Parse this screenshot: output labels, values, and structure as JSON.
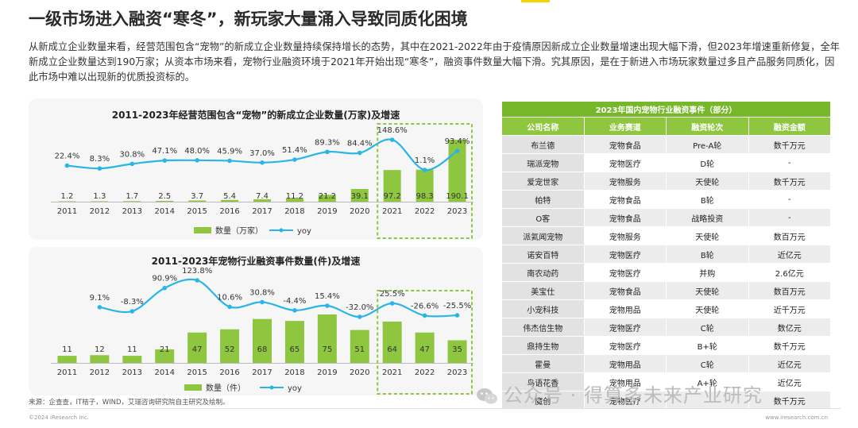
{
  "title": "一级市场进入融资“寒冬”，新玩家大量涌入导致同质化困境",
  "intro": "从新成立企业数量来看，经营范围包含“宠物”的新成立企业数量持续保持增长的态势，其中在2021-2022年由于疫情原因新成立企业数量增速出现大幅下滑，但2023年增速重新修复，全年新成立企业数量达到190万家；从资本市场来看，宠物行业融资环境于2021年开始出现“寒冬”，融资事件数量大幅下滑。究其原因，是在于新进入市场玩家数量过多且产品服务同质化，因此市场中难以出现新的优质投资标的。",
  "colors": {
    "bar": "#8ec640",
    "line": "#29b6e6",
    "highlight": "#8ec640",
    "table_header": "#76b82a"
  },
  "chart_data": [
    {
      "type": "bar",
      "title": "2011-2023年经营范围包含“宠物”的新成立企业数量(万家)及增速",
      "categories": [
        "2011",
        "2012",
        "2013",
        "2014",
        "2015",
        "2016",
        "2017",
        "2018",
        "2019",
        "2020",
        "2021",
        "2022",
        "2023"
      ],
      "series": [
        {
          "name": "数量（万家）",
          "kind": "bar",
          "values": [
            1.2,
            1.3,
            1.7,
            2.5,
            3.7,
            5.4,
            7.4,
            11.2,
            21.2,
            39.1,
            97.2,
            98.3,
            190.1
          ]
        },
        {
          "name": "yoy",
          "kind": "line",
          "values": [
            22.4,
            8.3,
            30.8,
            47.1,
            48.0,
            45.9,
            37.0,
            51.4,
            89.3,
            84.4,
            148.6,
            1.1,
            93.4
          ]
        }
      ],
      "value_labels": [
        "1.2",
        "1.3",
        "1.7",
        "2.5",
        "3.7",
        "5.4",
        "7.4",
        "11.2",
        "21.2",
        "39.1",
        "97.2",
        "98.3",
        "190.1"
      ],
      "yoy_labels": [
        "22.4%",
        "8.3%",
        "30.8%",
        "47.1%",
        "48.0%",
        "45.9%",
        "37.0%",
        "51.4%",
        "89.3%",
        "84.4%",
        "148.6%",
        "1.1%",
        "93.4%"
      ],
      "legend": "bottom"
    },
    {
      "type": "bar",
      "title": "2011-2023年宠物行业融资事件数量(件)及增速",
      "categories": [
        "2011",
        "2012",
        "2013",
        "2014",
        "2015",
        "2016",
        "2017",
        "2018",
        "2019",
        "2020",
        "2021",
        "2022",
        "2023"
      ],
      "series": [
        {
          "name": "数量（件）",
          "kind": "bar",
          "values": [
            11,
            12,
            11,
            21,
            47,
            52,
            68,
            65,
            75,
            51,
            64,
            47,
            35
          ]
        },
        {
          "name": "yoy",
          "kind": "line",
          "values": [
            null,
            9.1,
            -8.3,
            90.9,
            123.8,
            10.6,
            30.8,
            -4.4,
            15.4,
            -32.0,
            25.5,
            -26.6,
            -25.5
          ]
        }
      ],
      "value_labels": [
        "11",
        "12",
        "11",
        "21",
        "47",
        "52",
        "68",
        "65",
        "75",
        "51",
        "64",
        "47",
        "35"
      ],
      "yoy_labels": [
        "",
        "9.1%",
        "-8.3%",
        "90.9%",
        "123.8%",
        "10.6%",
        "30.8%",
        "-4.4%",
        "15.4%",
        "-32.0%",
        "25.5%",
        "-26.6%",
        "-25.5%"
      ],
      "legend": "bottom"
    }
  ],
  "table": {
    "caption": "2023年国内宠物行业融资事件（部分）",
    "headers": [
      "公司名称",
      "业务赛道",
      "融资轮次",
      "融资金额"
    ],
    "rows": [
      [
        "布兰德",
        "宠物食品",
        "Pre-A轮",
        "数千万元"
      ],
      [
        "瑞派宠物",
        "宠物医疗",
        "D轮",
        "-"
      ],
      [
        "爱宠世家",
        "宠物服务",
        "天使轮",
        "数千万元"
      ],
      [
        "帕特",
        "宠物食品",
        "B轮",
        "-"
      ],
      [
        "O客",
        "宠物食品",
        "战略投资",
        "-"
      ],
      [
        "派氦闻宠物",
        "宠物服务",
        "天使轮",
        "数百万元"
      ],
      [
        "诺安百特",
        "宠物医疗",
        "B轮",
        "近亿元"
      ],
      [
        "南农动药",
        "宠物医疗",
        "并购",
        "2.6亿元"
      ],
      [
        "美宝仕",
        "宠物食品",
        "天使轮",
        "数百万元"
      ],
      [
        "小宠科技",
        "宠物用品",
        "天使轮",
        "近千万元"
      ],
      [
        "伟杰信生物",
        "宠物医疗",
        "C轮",
        "数亿元"
      ],
      [
        "鼎持生物",
        "宠物医疗",
        "B+轮",
        "数千万元"
      ],
      [
        "霍曼",
        "宠物用品",
        "C轮",
        "近亿元"
      ],
      [
        "鸟语花香",
        "宠物用品",
        "A+轮",
        "近亿元"
      ],
      [
        "魔创",
        "宠物医疗",
        "",
        "数千万元"
      ]
    ]
  },
  "source": "来源：企查查，IT桔子，WIND，艾瑞咨询研究院自主研究及绘制。",
  "copyright": "©2024 iResearch Inc.",
  "site": "www.iresearch.com.cn",
  "watermark": "公众号 · 得算多未来产业研究"
}
